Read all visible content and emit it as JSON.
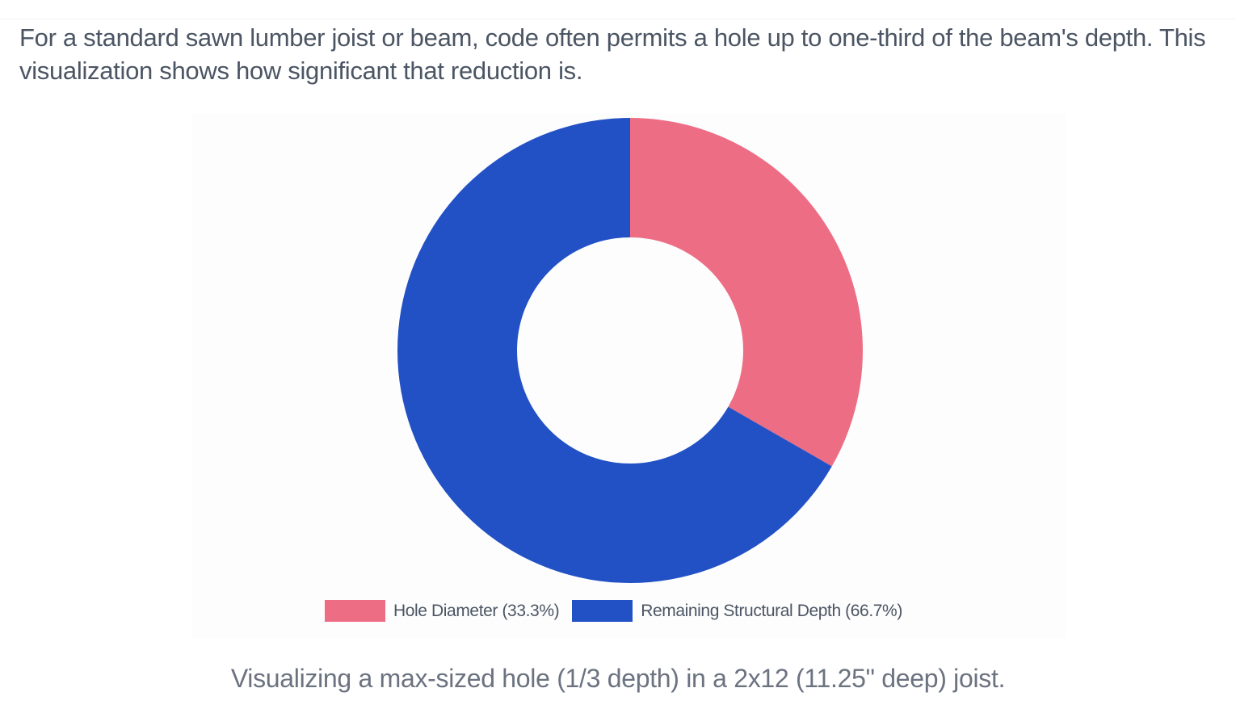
{
  "intro": "For a standard sawn lumber joist or beam, code often permits a hole up to one-third of the beam's depth. This visualization shows how significant that reduction is.",
  "caption": "Visualizing a max-sized hole (1/3 depth) in a 2x12 (11.25\" deep) joist.",
  "chart_data": {
    "type": "pie",
    "subtype": "doughnut",
    "title": "",
    "categories": [
      "Hole Diameter (33.3%)",
      "Remaining Structural Depth (66.7%)"
    ],
    "values": [
      33.3,
      66.7
    ],
    "colors": [
      "#ED6D85",
      "#2251C5"
    ],
    "legend_position": "bottom"
  }
}
